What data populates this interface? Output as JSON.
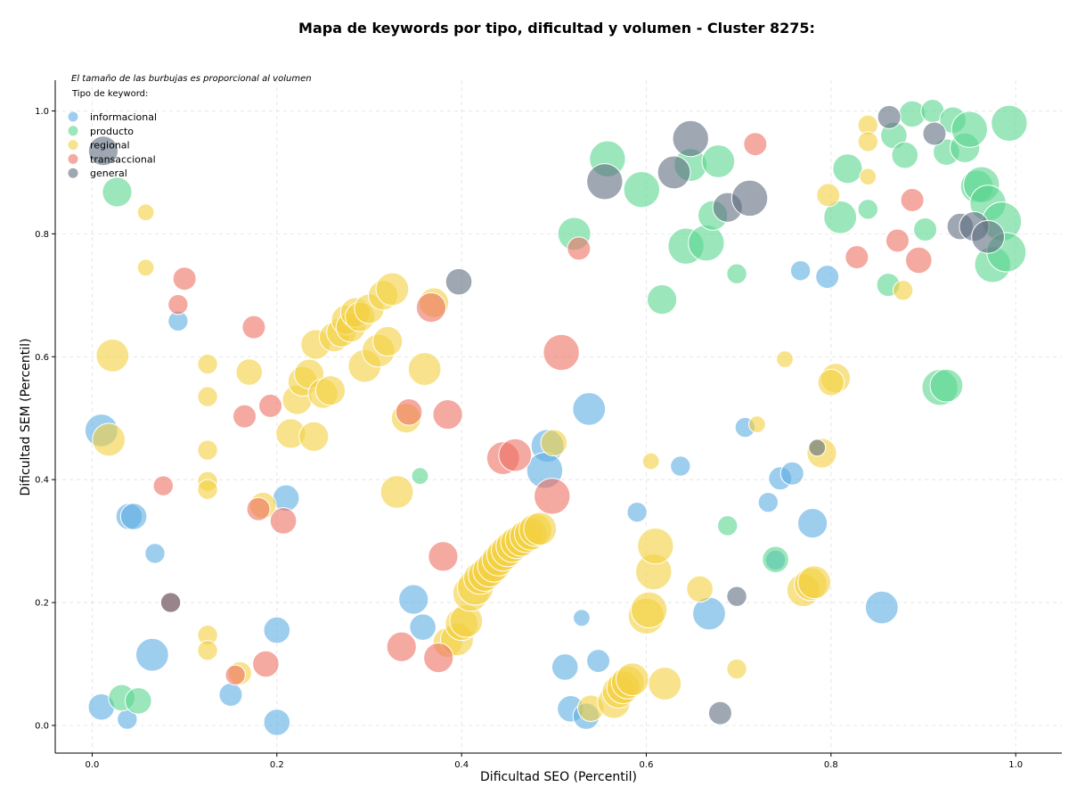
{
  "chart_data": {
    "type": "scatter",
    "title": "Mapa de keywords por tipo, dificultad y volumen - Cluster 8275:",
    "note": "El tamaño de las burbujas es proporcional al volumen",
    "xlabel": "Dificultad SEO (Percentil)",
    "ylabel": "Dificultad SEM (Percentil)",
    "xlim": [
      -0.04,
      1.05
    ],
    "ylim": [
      -0.045,
      1.05
    ],
    "xticks": [
      "0.0",
      "0.2",
      "0.4",
      "0.6",
      "0.8",
      "1.0"
    ],
    "yticks": [
      "0.0",
      "0.2",
      "0.4",
      "0.6",
      "0.8",
      "1.0"
    ],
    "grid": true,
    "legend": {
      "title": "Tipo de keyword:",
      "placement": "top-left"
    },
    "size_encoding": "volume",
    "series": [
      {
        "name": "informacional",
        "color": "#5dade2",
        "points": [
          [
            0.01,
            0.48,
            4
          ],
          [
            0.04,
            0.34,
            3
          ],
          [
            0.045,
            0.34,
            3
          ],
          [
            0.068,
            0.28,
            2
          ],
          [
            0.01,
            0.03,
            3
          ],
          [
            0.038,
            0.01,
            2
          ],
          [
            0.065,
            0.115,
            4
          ],
          [
            0.093,
            0.658,
            2
          ],
          [
            0.15,
            0.05,
            2.5
          ],
          [
            0.2,
            0.155,
            3
          ],
          [
            0.2,
            0.005,
            3
          ],
          [
            0.21,
            0.37,
            3
          ],
          [
            0.348,
            0.205,
            3.5
          ],
          [
            0.358,
            0.16,
            3
          ],
          [
            0.493,
            0.455,
            4
          ],
          [
            0.49,
            0.415,
            4.5
          ],
          [
            0.538,
            0.515,
            4
          ],
          [
            0.512,
            0.095,
            3
          ],
          [
            0.518,
            0.027,
            3
          ],
          [
            0.53,
            0.175,
            1.5
          ],
          [
            0.535,
            0.015,
            3
          ],
          [
            0.548,
            0.105,
            2.5
          ],
          [
            0.59,
            0.347,
            2
          ],
          [
            0.637,
            0.422,
            2
          ],
          [
            0.668,
            0.182,
            4
          ],
          [
            0.707,
            0.485,
            2
          ],
          [
            0.745,
            0.402,
            2.5
          ],
          [
            0.732,
            0.363,
            2
          ],
          [
            0.758,
            0.41,
            2.5
          ],
          [
            0.74,
            0.269,
            2
          ],
          [
            0.767,
            0.74,
            2
          ],
          [
            0.78,
            0.329,
            3.5
          ],
          [
            0.796,
            0.73,
            2.5
          ],
          [
            0.855,
            0.192,
            4
          ]
        ]
      },
      {
        "name": "producto",
        "color": "#58d68d",
        "points": [
          [
            0.027,
            0.868,
            3.5
          ],
          [
            0.032,
            0.045,
            3
          ],
          [
            0.05,
            0.04,
            3
          ],
          [
            0.355,
            0.406,
            1.5
          ],
          [
            0.522,
            0.8,
            4
          ],
          [
            0.558,
            0.922,
            4.5
          ],
          [
            0.595,
            0.872,
            4.5
          ],
          [
            0.617,
            0.693,
            3.5
          ],
          [
            0.648,
            0.912,
            4
          ],
          [
            0.643,
            0.78,
            4.5
          ],
          [
            0.665,
            0.785,
            4.5
          ],
          [
            0.672,
            0.83,
            3.5
          ],
          [
            0.678,
            0.918,
            4
          ],
          [
            0.698,
            0.735,
            2
          ],
          [
            0.688,
            0.325,
            2
          ],
          [
            0.74,
            0.27,
            3
          ],
          [
            0.818,
            0.906,
            3.5
          ],
          [
            0.81,
            0.827,
            4
          ],
          [
            0.84,
            0.84,
            2
          ],
          [
            0.862,
            0.717,
            2.5
          ],
          [
            0.868,
            0.96,
            3
          ],
          [
            0.88,
            0.928,
            3
          ],
          [
            0.888,
            0.995,
            3
          ],
          [
            0.902,
            0.807,
            2.5
          ],
          [
            0.91,
            1.0,
            2.5
          ],
          [
            0.925,
            0.933,
            3
          ],
          [
            0.932,
            0.985,
            3
          ],
          [
            0.945,
            0.94,
            3.5
          ],
          [
            0.95,
            0.97,
            4.5
          ],
          [
            0.958,
            0.877,
            4
          ],
          [
            0.963,
            0.88,
            4.5
          ],
          [
            0.97,
            0.85,
            4.5
          ],
          [
            0.975,
            0.75,
            4.5
          ],
          [
            0.985,
            0.82,
            5
          ],
          [
            0.99,
            0.77,
            5
          ],
          [
            0.993,
            0.98,
            4.5
          ],
          [
            0.918,
            0.55,
            4.5
          ],
          [
            0.925,
            0.553,
            4
          ]
        ]
      },
      {
        "name": "regional",
        "color": "#f4d03f",
        "points": [
          [
            0.022,
            0.602,
            4
          ],
          [
            0.018,
            0.465,
            4
          ],
          [
            0.058,
            0.835,
            1.5
          ],
          [
            0.058,
            0.745,
            1.5
          ],
          [
            0.125,
            0.588,
            2
          ],
          [
            0.125,
            0.535,
            2
          ],
          [
            0.125,
            0.448,
            2
          ],
          [
            0.125,
            0.397,
            2
          ],
          [
            0.125,
            0.384,
            2
          ],
          [
            0.125,
            0.147,
            2
          ],
          [
            0.125,
            0.122,
            2
          ],
          [
            0.16,
            0.085,
            2.5
          ],
          [
            0.17,
            0.575,
            3
          ],
          [
            0.185,
            0.358,
            3
          ],
          [
            0.215,
            0.475,
            3.5
          ],
          [
            0.222,
            0.53,
            3.5
          ],
          [
            0.228,
            0.56,
            3.5
          ],
          [
            0.235,
            0.572,
            3.5
          ],
          [
            0.24,
            0.47,
            3.5
          ],
          [
            0.242,
            0.62,
            3.5
          ],
          [
            0.25,
            0.54,
            3.5
          ],
          [
            0.258,
            0.545,
            3.5
          ],
          [
            0.262,
            0.632,
            3.5
          ],
          [
            0.27,
            0.64,
            3.5
          ],
          [
            0.275,
            0.66,
            3.5
          ],
          [
            0.28,
            0.648,
            3.5
          ],
          [
            0.285,
            0.672,
            3.5
          ],
          [
            0.29,
            0.665,
            3.5
          ],
          [
            0.295,
            0.585,
            4
          ],
          [
            0.3,
            0.678,
            3.5
          ],
          [
            0.31,
            0.61,
            4
          ],
          [
            0.315,
            0.7,
            3.5
          ],
          [
            0.32,
            0.625,
            3.5
          ],
          [
            0.325,
            0.71,
            4
          ],
          [
            0.33,
            0.38,
            4
          ],
          [
            0.34,
            0.5,
            3.5
          ],
          [
            0.36,
            0.58,
            4
          ],
          [
            0.37,
            0.688,
            3.5
          ],
          [
            0.385,
            0.135,
            3.5
          ],
          [
            0.395,
            0.14,
            4
          ],
          [
            0.4,
            0.165,
            4
          ],
          [
            0.405,
            0.17,
            4
          ],
          [
            0.41,
            0.215,
            4.5
          ],
          [
            0.415,
            0.225,
            4.5
          ],
          [
            0.42,
            0.24,
            4
          ],
          [
            0.425,
            0.245,
            4
          ],
          [
            0.43,
            0.252,
            4
          ],
          [
            0.435,
            0.26,
            4
          ],
          [
            0.44,
            0.27,
            4
          ],
          [
            0.445,
            0.278,
            4
          ],
          [
            0.45,
            0.285,
            4
          ],
          [
            0.455,
            0.292,
            4
          ],
          [
            0.46,
            0.298,
            4
          ],
          [
            0.465,
            0.302,
            4
          ],
          [
            0.47,
            0.308,
            4
          ],
          [
            0.475,
            0.312,
            4
          ],
          [
            0.48,
            0.318,
            4
          ],
          [
            0.485,
            0.32,
            4
          ],
          [
            0.5,
            0.46,
            3
          ],
          [
            0.54,
            0.028,
            3
          ],
          [
            0.565,
            0.038,
            4
          ],
          [
            0.57,
            0.055,
            4
          ],
          [
            0.575,
            0.062,
            4
          ],
          [
            0.58,
            0.07,
            4
          ],
          [
            0.585,
            0.075,
            4
          ],
          [
            0.6,
            0.178,
            4.5
          ],
          [
            0.603,
            0.188,
            4.5
          ],
          [
            0.605,
            0.43,
            1.5
          ],
          [
            0.608,
            0.25,
            4.5
          ],
          [
            0.61,
            0.292,
            4.5
          ],
          [
            0.62,
            0.068,
            4
          ],
          [
            0.658,
            0.222,
            3
          ],
          [
            0.698,
            0.092,
            2
          ],
          [
            0.72,
            0.49,
            1.5
          ],
          [
            0.75,
            0.596,
            1.5
          ],
          [
            0.77,
            0.22,
            4
          ],
          [
            0.778,
            0.23,
            4
          ],
          [
            0.782,
            0.233,
            4
          ],
          [
            0.79,
            0.443,
            3.5
          ],
          [
            0.797,
            0.863,
            2.5
          ],
          [
            0.805,
            0.565,
            3.5
          ],
          [
            0.8,
            0.558,
            3
          ],
          [
            0.84,
            0.977,
            2
          ],
          [
            0.84,
            0.95,
            2
          ],
          [
            0.84,
            0.893,
            1.5
          ],
          [
            0.878,
            0.708,
            2
          ]
        ]
      },
      {
        "name": "transaccional",
        "color": "#ec7063",
        "points": [
          [
            0.077,
            0.39,
            2
          ],
          [
            0.085,
            0.2,
            2
          ],
          [
            0.093,
            0.685,
            2
          ],
          [
            0.1,
            0.727,
            2.5
          ],
          [
            0.155,
            0.082,
            2
          ],
          [
            0.165,
            0.503,
            2.5
          ],
          [
            0.175,
            0.648,
            2.5
          ],
          [
            0.18,
            0.352,
            2.5
          ],
          [
            0.188,
            0.1,
            3
          ],
          [
            0.193,
            0.52,
            2.5
          ],
          [
            0.207,
            0.333,
            3
          ],
          [
            0.335,
            0.128,
            3.5
          ],
          [
            0.343,
            0.51,
            3
          ],
          [
            0.367,
            0.68,
            3.5
          ],
          [
            0.375,
            0.11,
            3.5
          ],
          [
            0.38,
            0.275,
            3.5
          ],
          [
            0.385,
            0.506,
            3.5
          ],
          [
            0.445,
            0.435,
            4
          ],
          [
            0.458,
            0.44,
            4
          ],
          [
            0.498,
            0.373,
            4.5
          ],
          [
            0.508,
            0.607,
            4.5
          ],
          [
            0.527,
            0.776,
            2.5
          ],
          [
            0.718,
            0.946,
            2.5
          ],
          [
            0.828,
            0.762,
            2.5
          ],
          [
            0.872,
            0.789,
            2.5
          ],
          [
            0.888,
            0.855,
            2.5
          ],
          [
            0.895,
            0.757,
            3
          ]
        ]
      },
      {
        "name": "general",
        "color": "#5d6d7e",
        "points": [
          [
            0.012,
            0.935,
            3.5
          ],
          [
            0.085,
            0.2,
            2
          ],
          [
            0.397,
            0.722,
            3
          ],
          [
            0.555,
            0.885,
            4.5
          ],
          [
            0.63,
            0.9,
            4
          ],
          [
            0.648,
            0.955,
            4.5
          ],
          [
            0.688,
            0.843,
            3.5
          ],
          [
            0.712,
            0.858,
            4.5
          ],
          [
            0.698,
            0.21,
            2
          ],
          [
            0.68,
            0.02,
            2.5
          ],
          [
            0.785,
            0.452,
            1.5
          ],
          [
            0.863,
            0.99,
            2.5
          ],
          [
            0.912,
            0.963,
            2.5
          ],
          [
            0.94,
            0.812,
            3
          ],
          [
            0.955,
            0.812,
            3.5
          ],
          [
            0.97,
            0.795,
            4
          ]
        ]
      }
    ]
  }
}
